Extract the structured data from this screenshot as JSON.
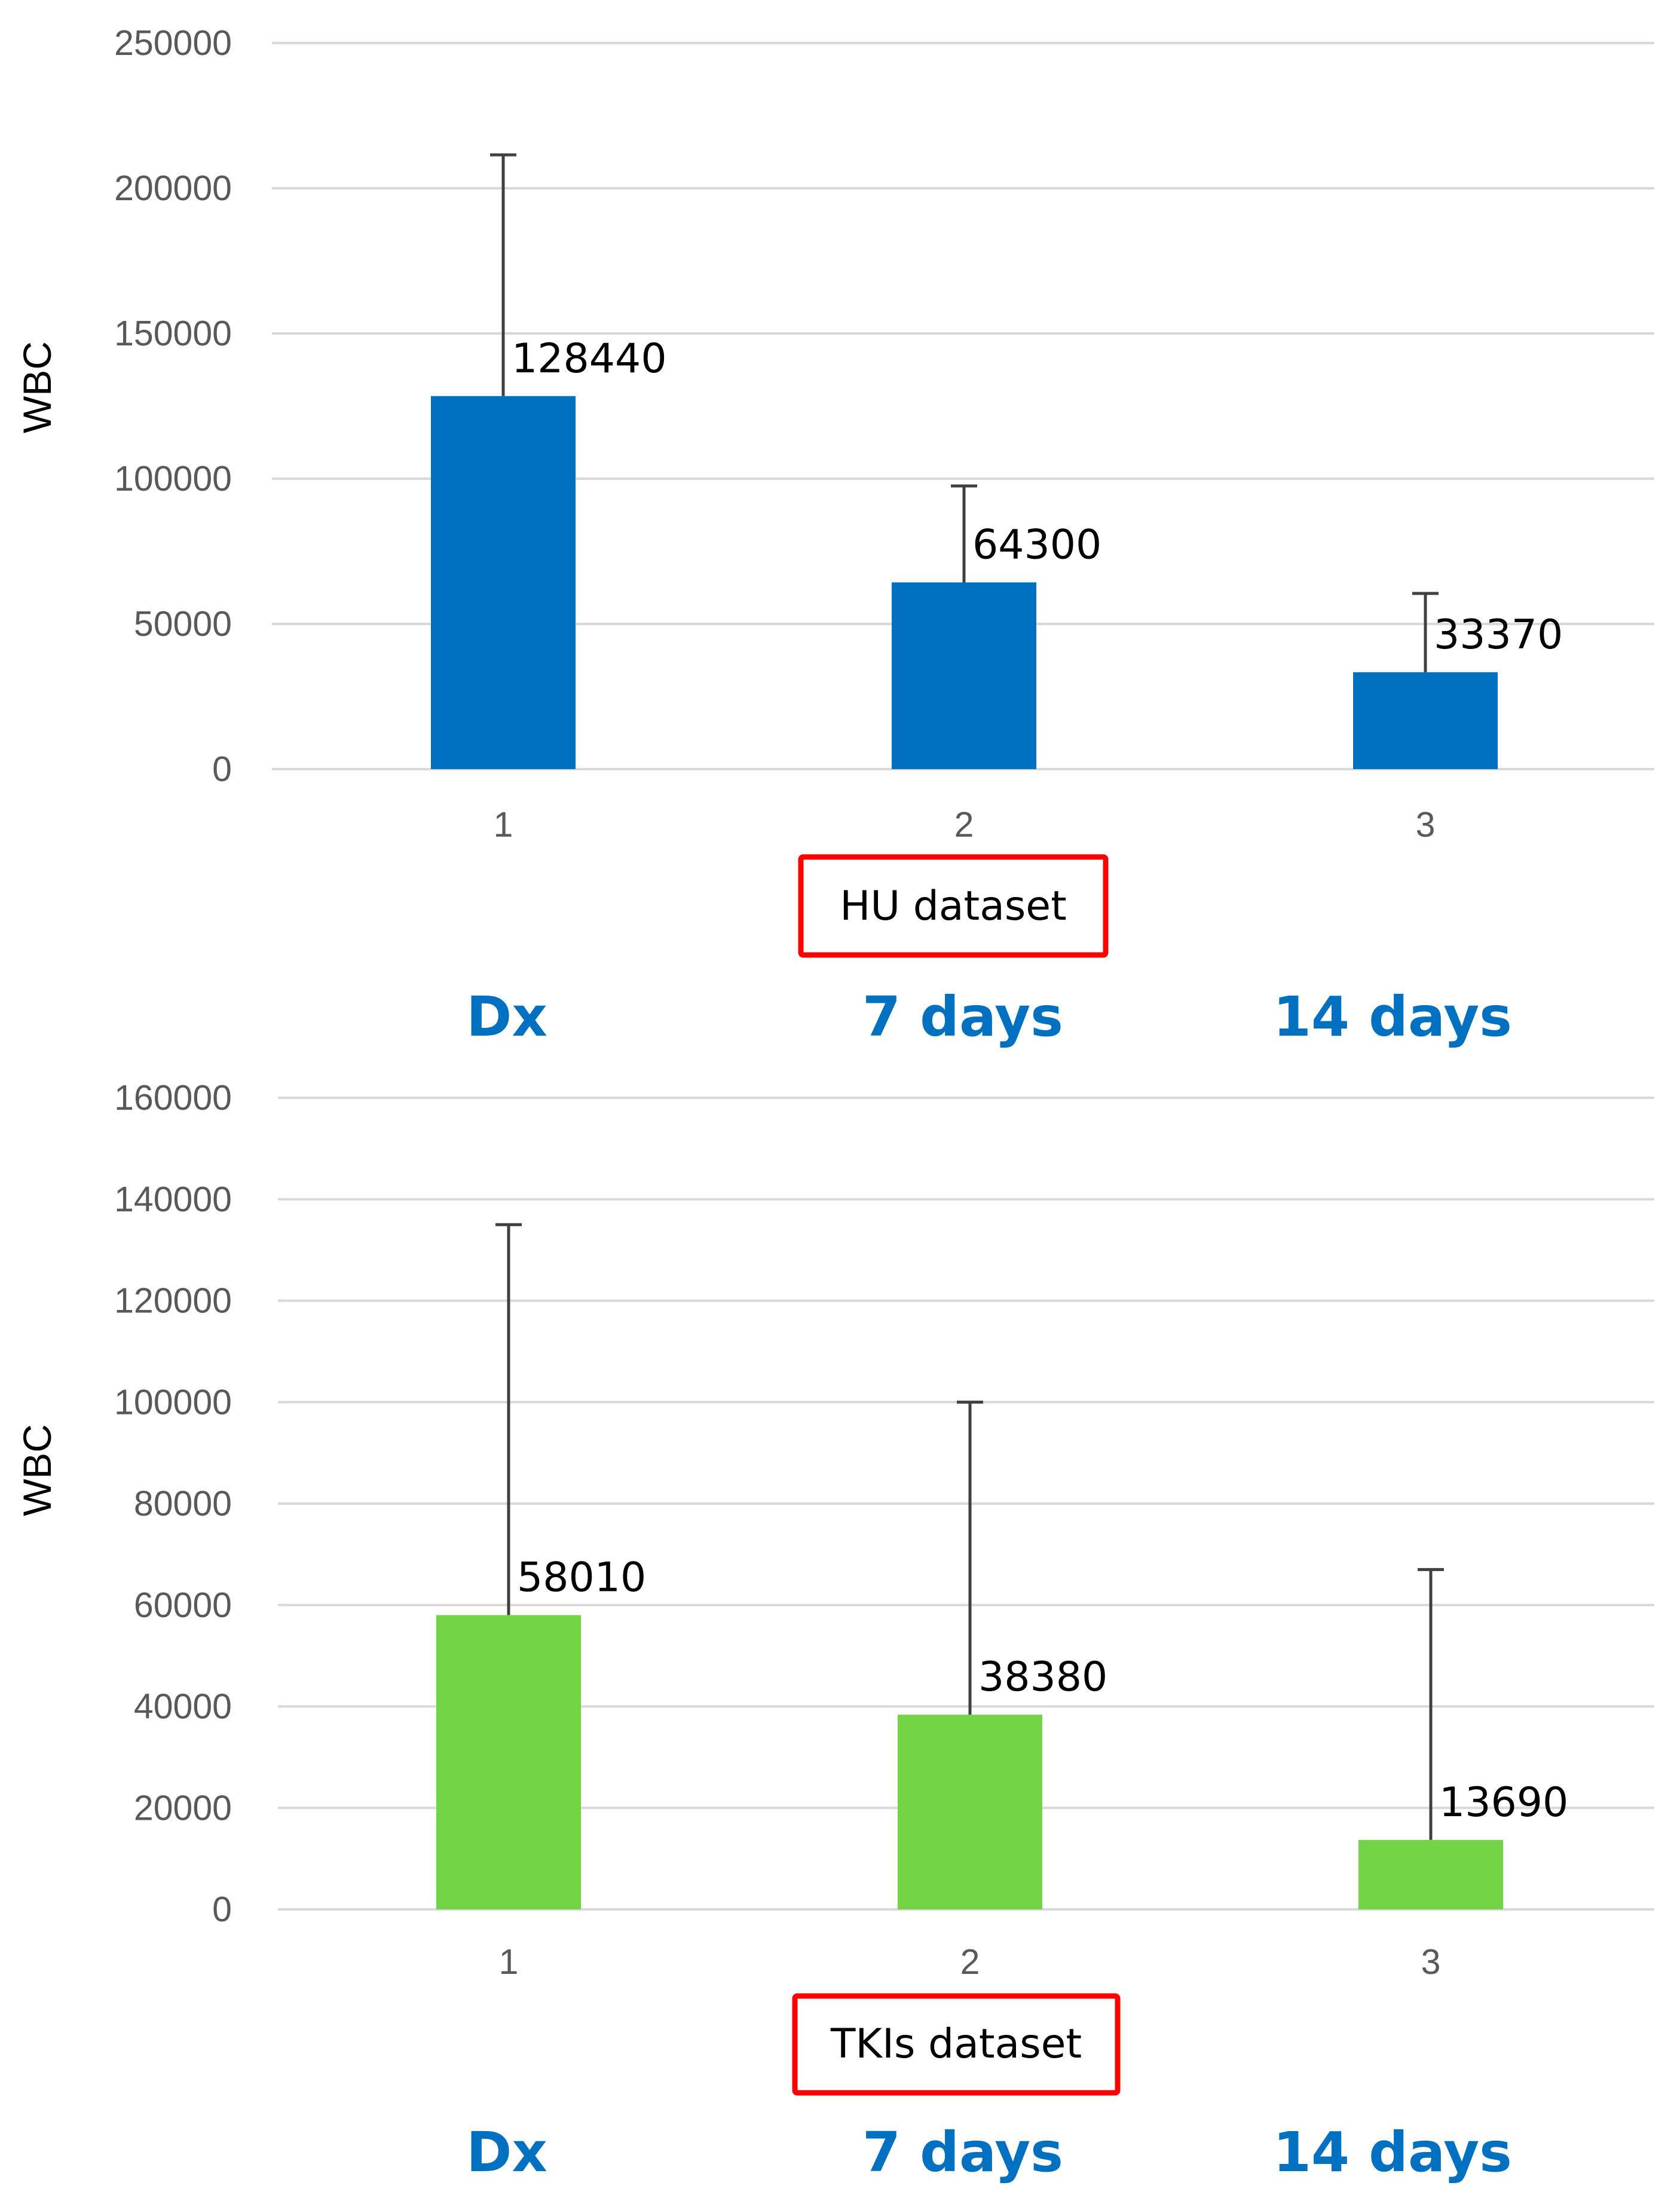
{
  "chart_data": [
    {
      "type": "bar",
      "name": "hu",
      "categories": [
        "1",
        "2",
        "3"
      ],
      "values": [
        128440,
        64300,
        33370
      ],
      "error_upper": [
        211500,
        97500,
        60500
      ],
      "data_labels": [
        "128440",
        "64300",
        "33370"
      ],
      "ylabel": "WBC",
      "ylim": [
        0,
        250000
      ],
      "yticks": [
        0,
        50000,
        100000,
        150000,
        200000,
        250000
      ],
      "ytick_labels": [
        "0",
        "50000",
        "100000",
        "150000",
        "200000",
        "250000"
      ],
      "grid": true,
      "legend": "none",
      "bar_color": "#0070C0",
      "annotation": "HU dataset",
      "annotation_border_color": "#FF0000",
      "period_labels": [
        "Dx",
        "7 days",
        "14 days"
      ],
      "period_label_color": "#0070C0"
    },
    {
      "type": "bar",
      "name": "tki",
      "categories": [
        "1",
        "2",
        "3"
      ],
      "values": [
        58010,
        38380,
        13690
      ],
      "error_upper": [
        135000,
        100000,
        67000
      ],
      "data_labels": [
        "58010",
        "38380",
        "13690"
      ],
      "ylabel": "WBC",
      "ylim": [
        0,
        160000
      ],
      "yticks": [
        0,
        20000,
        40000,
        60000,
        80000,
        100000,
        120000,
        140000,
        160000
      ],
      "ytick_labels": [
        "0",
        "20000",
        "40000",
        "60000",
        "80000",
        "100000",
        "120000",
        "140000",
        "160000"
      ],
      "grid": true,
      "legend": "none",
      "bar_color": "#70D444",
      "annotation": "TKIs dataset",
      "annotation_border_color": "#FF0000",
      "period_labels": [
        "Dx",
        "7 days",
        "14 days"
      ],
      "period_label_color": "#0070C0"
    }
  ]
}
